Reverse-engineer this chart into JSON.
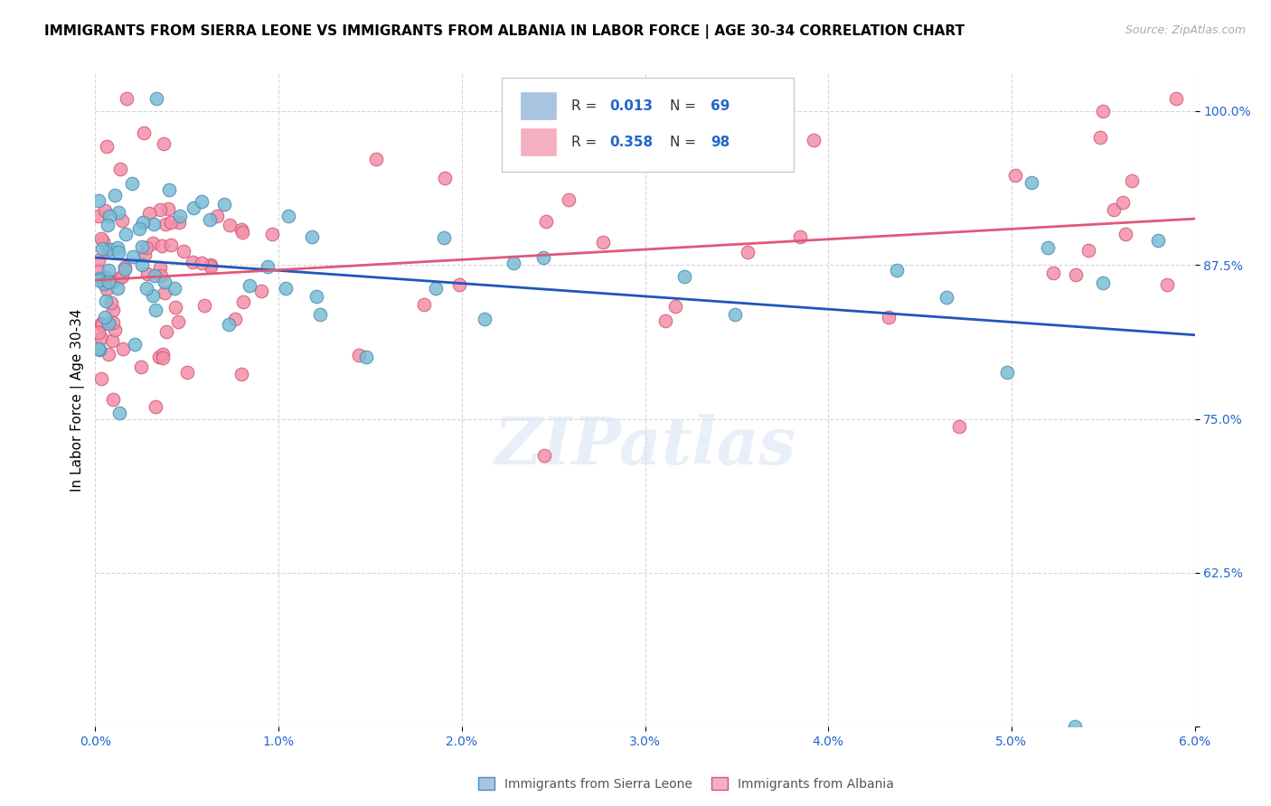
{
  "title": "IMMIGRANTS FROM SIERRA LEONE VS IMMIGRANTS FROM ALBANIA IN LABOR FORCE | AGE 30-34 CORRELATION CHART",
  "source": "Source: ZipAtlas.com",
  "ylabel": "In Labor Force | Age 30-34",
  "xmin": 0.0,
  "xmax": 6.0,
  "ymin": 0.5,
  "ymax": 1.03,
  "sierra_leone_color": "#7abcd4",
  "sierra_leone_edge": "#4a8cb8",
  "albania_color": "#f490a8",
  "albania_edge": "#d05878",
  "sierra_leone_line_color": "#2255bb",
  "albania_line_color": "#e05878",
  "sl_legend_color": "#a8c4e0",
  "al_legend_color": "#f4b0c0",
  "R_sl": "0.013",
  "N_sl": "69",
  "R_al": "0.358",
  "N_al": "98",
  "watermark": "ZIPatlas",
  "bottom_label_sl": "Immigrants from Sierra Leone",
  "bottom_label_al": "Immigrants from Albania"
}
